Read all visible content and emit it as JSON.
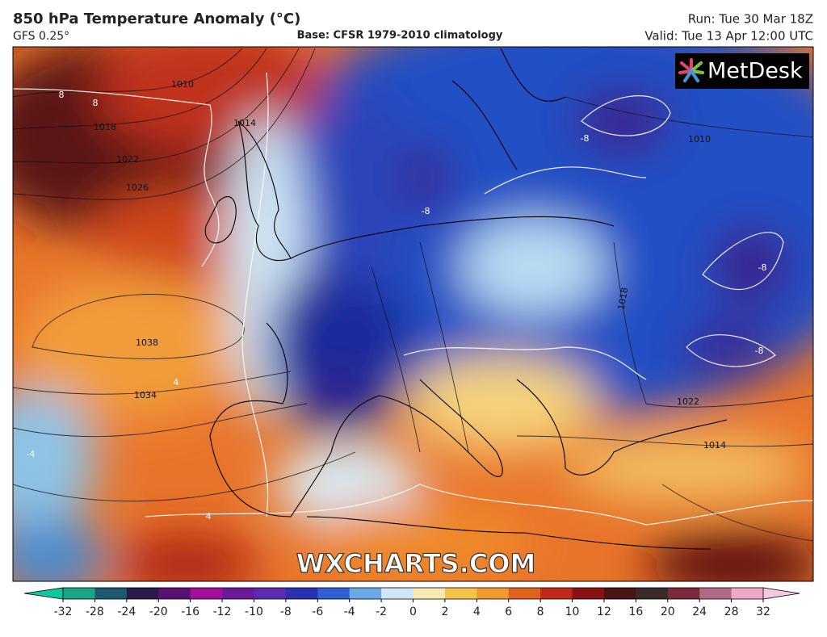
{
  "header": {
    "title": "850 hPa Temperature Anomaly (°C)",
    "model": "GFS 0.25°",
    "base": "Base: CFSR 1979-2010 climatology",
    "run": "Run: Tue 30 Mar 18Z",
    "valid": "Valid: Tue 13 Apr 12:00 UTC"
  },
  "logo": "MetDesk",
  "watermark": "WXCHARTS.COM",
  "contour_labels": [
    "1038",
    "1034",
    "1018",
    "1022",
    "1026",
    "1014",
    "1010",
    "1022",
    "1014",
    "1010",
    "1018",
    "8",
    "8",
    "-8",
    "-8",
    "-8",
    "4",
    "-4",
    "4",
    "-8"
  ],
  "colorbar": {
    "ticks": [
      -32,
      -28,
      -24,
      -20,
      -16,
      -12,
      -10,
      -8,
      -6,
      -4,
      -2,
      0,
      2,
      4,
      6,
      8,
      10,
      12,
      16,
      20,
      24,
      28,
      32
    ],
    "colors": [
      "#1aa58a",
      "#1d5a6e",
      "#2a1a4a",
      "#5a1070",
      "#a0109a",
      "#6a1a9a",
      "#5a2ab0",
      "#2a30b0",
      "#2f5fd0",
      "#6aa8e6",
      "#cfe6f7",
      "#f6eab0",
      "#f5c24a",
      "#f09a30",
      "#e0601e",
      "#c0281a",
      "#8a1212",
      "#4a1414",
      "#3a2a2a",
      "#7a2a3a",
      "#b06a86",
      "#f0a6c6"
    ],
    "low_color": "#10c8a0",
    "high_color": "#f8c8e0"
  }
}
